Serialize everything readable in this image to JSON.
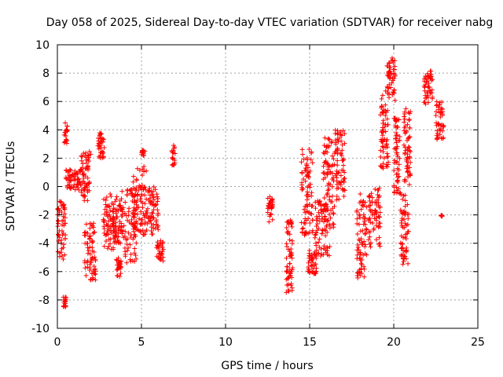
{
  "chart_data": {
    "type": "scatter",
    "title": "Day 058 of 2025, Sidereal Day-to-day VTEC variation (SDTVAR) for receiver nabg",
    "xlabel": "GPS time / hours",
    "ylabel": "SDTVAR / TECUs",
    "xlim": [
      0,
      25
    ],
    "ylim": [
      -10,
      10
    ],
    "x_ticks": [
      0,
      5,
      10,
      15,
      20,
      25
    ],
    "y_ticks": [
      -10,
      -8,
      -6,
      -4,
      -2,
      0,
      2,
      4,
      6,
      8,
      10
    ],
    "grid": true,
    "marker": "+",
    "color": "#ff0000",
    "clusters": [
      {
        "x_start": 0.0,
        "x_end": 0.5,
        "y_min": -5.2,
        "y_max": -1.0
      },
      {
        "x_start": 0.35,
        "x_end": 0.55,
        "y_min": -8.5,
        "y_max": -7.8
      },
      {
        "x_start": 0.4,
        "x_end": 0.6,
        "y_min": 3.0,
        "y_max": 4.5
      },
      {
        "x_start": 0.5,
        "x_end": 1.4,
        "y_min": -0.3,
        "y_max": 1.2
      },
      {
        "x_start": 1.4,
        "x_end": 2.0,
        "y_min": -1.0,
        "y_max": 2.6
      },
      {
        "x_start": 1.6,
        "x_end": 2.3,
        "y_min": -6.6,
        "y_max": -2.5
      },
      {
        "x_start": 2.4,
        "x_end": 2.8,
        "y_min": 2.0,
        "y_max": 3.8
      },
      {
        "x_start": 2.7,
        "x_end": 3.5,
        "y_min": -4.5,
        "y_max": -0.5
      },
      {
        "x_start": 3.3,
        "x_end": 4.0,
        "y_min": -4.0,
        "y_max": -0.3
      },
      {
        "x_start": 3.5,
        "x_end": 3.8,
        "y_min": -6.5,
        "y_max": -5.0
      },
      {
        "x_start": 4.0,
        "x_end": 4.7,
        "y_min": -5.4,
        "y_max": 0.0
      },
      {
        "x_start": 4.5,
        "x_end": 5.3,
        "y_min": -3.5,
        "y_max": 1.5
      },
      {
        "x_start": 5.0,
        "x_end": 5.2,
        "y_min": 2.2,
        "y_max": 2.6
      },
      {
        "x_start": 5.3,
        "x_end": 6.0,
        "y_min": -3.5,
        "y_max": 0.0
      },
      {
        "x_start": 5.9,
        "x_end": 6.3,
        "y_min": -5.3,
        "y_max": -3.8
      },
      {
        "x_start": 6.8,
        "x_end": 7.0,
        "y_min": 1.5,
        "y_max": 3.0
      },
      {
        "x_start": 12.5,
        "x_end": 12.8,
        "y_min": -2.5,
        "y_max": -0.5
      },
      {
        "x_start": 13.6,
        "x_end": 14.0,
        "y_min": -7.7,
        "y_max": -2.2
      },
      {
        "x_start": 14.5,
        "x_end": 15.2,
        "y_min": -3.5,
        "y_max": 2.8
      },
      {
        "x_start": 14.9,
        "x_end": 15.4,
        "y_min": -6.2,
        "y_max": -4.5
      },
      {
        "x_start": 15.3,
        "x_end": 16.2,
        "y_min": -5.0,
        "y_max": -1.0
      },
      {
        "x_start": 15.8,
        "x_end": 16.5,
        "y_min": -3.0,
        "y_max": 3.5
      },
      {
        "x_start": 16.5,
        "x_end": 17.1,
        "y_min": -1.0,
        "y_max": 4.0
      },
      {
        "x_start": 17.8,
        "x_end": 18.4,
        "y_min": -6.5,
        "y_max": -0.3
      },
      {
        "x_start": 18.5,
        "x_end": 19.2,
        "y_min": -4.3,
        "y_max": 0.0
      },
      {
        "x_start": 19.2,
        "x_end": 19.7,
        "y_min": 1.0,
        "y_max": 7.0
      },
      {
        "x_start": 19.6,
        "x_end": 20.1,
        "y_min": 6.0,
        "y_max": 9.2
      },
      {
        "x_start": 20.0,
        "x_end": 20.4,
        "y_min": -0.5,
        "y_max": 5.0
      },
      {
        "x_start": 20.4,
        "x_end": 20.9,
        "y_min": -5.5,
        "y_max": -0.5
      },
      {
        "x_start": 20.6,
        "x_end": 21.0,
        "y_min": 0.0,
        "y_max": 5.5
      },
      {
        "x_start": 21.8,
        "x_end": 22.3,
        "y_min": 5.7,
        "y_max": 8.2
      },
      {
        "x_start": 22.5,
        "x_end": 23.0,
        "y_min": 3.2,
        "y_max": 6.0
      },
      {
        "x_start": 22.8,
        "x_end": 22.9,
        "y_min": -2.2,
        "y_max": -2.0
      }
    ]
  }
}
